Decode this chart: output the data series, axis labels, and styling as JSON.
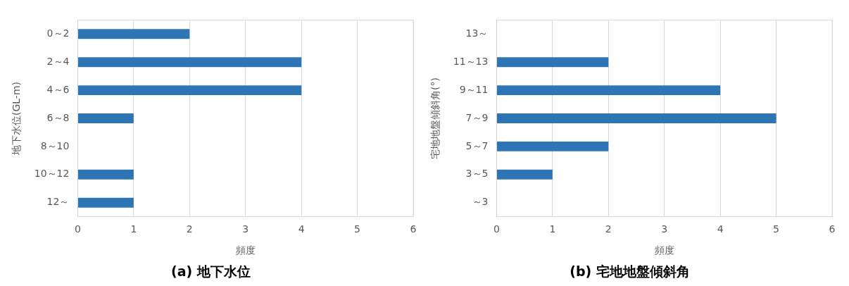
{
  "chart_data": [
    {
      "type": "bar",
      "orientation": "horizontal",
      "title": "(a) 地下水位",
      "xlabel": "頻度",
      "ylabel": "地下水位(GL-m)",
      "categories": [
        "0～2",
        "2～4",
        "4～6",
        "6～8",
        "8～10",
        "10～12",
        "12～"
      ],
      "values": [
        2,
        4,
        4,
        1,
        0,
        1,
        1
      ],
      "color": "#2e75b6",
      "xlim": [
        0,
        6
      ],
      "xticks": [
        0,
        1,
        2,
        3,
        4,
        5,
        6
      ],
      "grid": "x"
    },
    {
      "type": "bar",
      "orientation": "horizontal",
      "title": "(b) 宅地地盤傾斜角",
      "xlabel": "頻度",
      "ylabel": "宅地地盤傾斜角(°)",
      "categories": [
        "13～",
        "11～13",
        "9～11",
        "7～9",
        "5～7",
        "3～5",
        "～3"
      ],
      "values": [
        0,
        2,
        4,
        5,
        2,
        1,
        0
      ],
      "color": "#2e75b6",
      "xlim": [
        0,
        6
      ],
      "xticks": [
        0,
        1,
        2,
        3,
        4,
        5,
        6
      ],
      "grid": "x"
    }
  ]
}
